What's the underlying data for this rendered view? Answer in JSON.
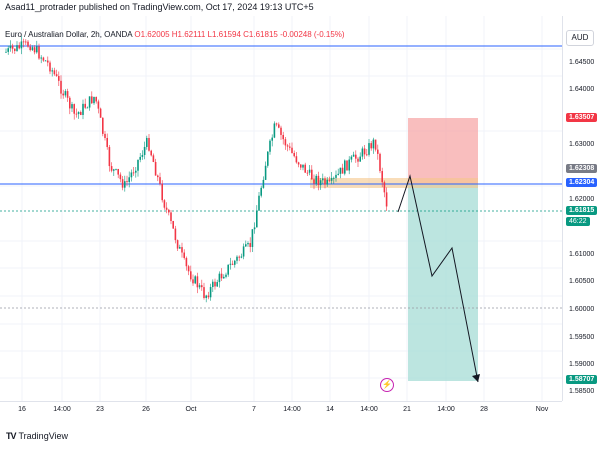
{
  "header": {
    "publisher": "Asad11_protrader published on TradingView.com, Oct 17, 2024 19:13 UTC+5"
  },
  "legend": {
    "symbol": "Euro / Australian Dollar, 2h, OANDA",
    "open": "O1.62005",
    "high": "H1.62111",
    "low": "L1.61594",
    "close": "C1.61815",
    "change": "-0.00248 (-0.15%)"
  },
  "currency_button": "AUD",
  "price_axis": {
    "labels": [
      "1.64500",
      "1.64000",
      "1.63000",
      "1.62000",
      "1.61000",
      "1.60500",
      "1.60000",
      "1.59500",
      "1.59000",
      "1.58500"
    ],
    "tags": {
      "stop": "1.63507",
      "entry_upper": "1.62308",
      "entry": "1.62304",
      "current": "1.61815",
      "countdown": "46:22",
      "target": "1.58707"
    }
  },
  "time_axis": {
    "labels": [
      "16",
      "14:00",
      "23",
      "26",
      "Oct",
      "7",
      "14:00",
      "14",
      "14:00",
      "21",
      "14:00",
      "28",
      "Nov"
    ]
  },
  "footer": {
    "brand_mark": "TV",
    "brand": "TradingView"
  },
  "colors": {
    "up": "#089981",
    "down": "#f23645",
    "stop_zone": "#f7a8a8",
    "target_zone": "#a6dcd5",
    "entry_line": "#2962ff",
    "zone_band": "#f5c78a"
  },
  "icons": [
    "flash-icon",
    "tradingview-logo-icon"
  ]
}
